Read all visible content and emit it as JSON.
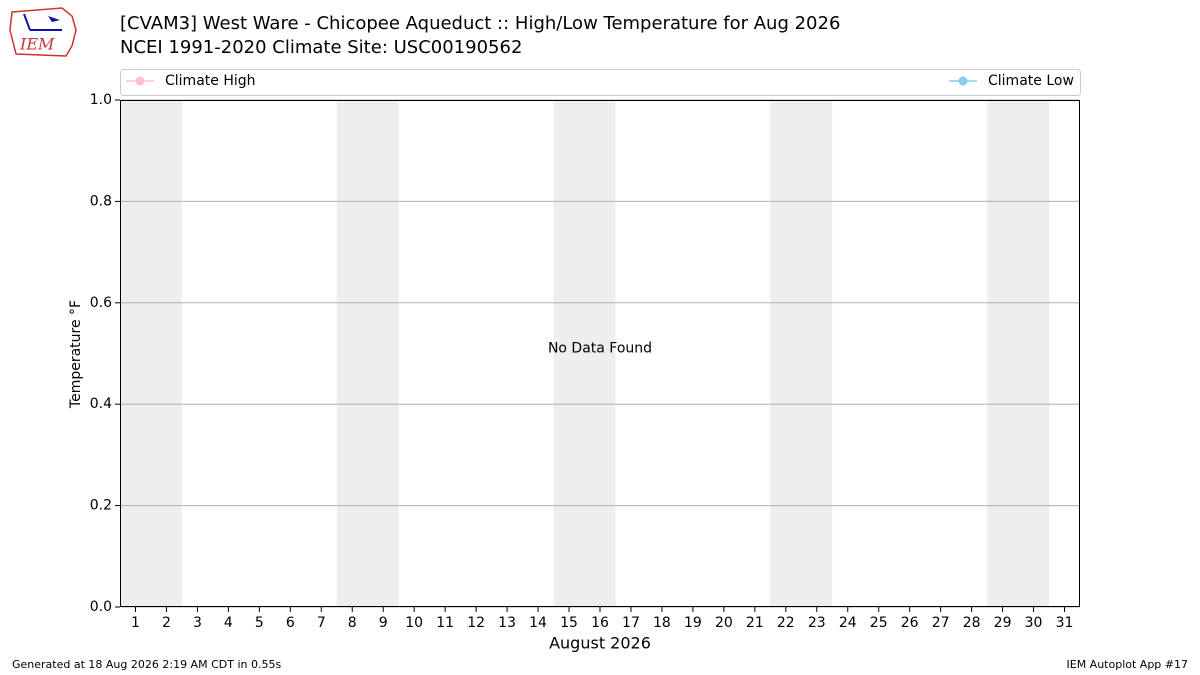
{
  "logo_text": "IEM",
  "chart_data": {
    "type": "line",
    "title": "[CVAM3] West Ware - Chicopee Aqueduct :: High/Low Temperature for Aug 2026",
    "subtitle": "NCEI 1991-2020 Climate Site: USC00190562",
    "y_label": "Temperature °F",
    "x_label": "August 2026",
    "annotation": "No Data Found",
    "x": [],
    "series": [
      {
        "name": "Climate High",
        "color": "#ffc0cb",
        "values": []
      },
      {
        "name": "Climate Low",
        "color": "#87ceeb",
        "values": []
      }
    ],
    "xlim": [
      0.5,
      31.5
    ],
    "xticks": [
      1,
      2,
      3,
      4,
      5,
      6,
      7,
      8,
      9,
      10,
      11,
      12,
      13,
      14,
      15,
      16,
      17,
      18,
      19,
      20,
      21,
      22,
      23,
      24,
      25,
      26,
      27,
      28,
      29,
      30,
      31
    ],
    "ylim": [
      0,
      1
    ],
    "yticks": [
      {
        "value": 0,
        "label": "0.0"
      },
      {
        "value": 0.2,
        "label": "0.2"
      },
      {
        "value": 0.4,
        "label": "0.4"
      },
      {
        "value": 0.6,
        "label": "0.6"
      },
      {
        "value": 0.8,
        "label": "0.8"
      },
      {
        "value": 1,
        "label": "1.0"
      }
    ],
    "grid": true,
    "shaded_ranges": [
      [
        0.5,
        2.5
      ],
      [
        7.5,
        9.5
      ],
      [
        14.5,
        16.5
      ],
      [
        21.5,
        23.5
      ],
      [
        28.5,
        30.5
      ]
    ],
    "shade_color": "#eeeeee",
    "footer_left": "Generated at 18 Aug 2026 2:19 AM CDT in 0.55s",
    "footer_right": "IEM Autoplot App #17"
  }
}
